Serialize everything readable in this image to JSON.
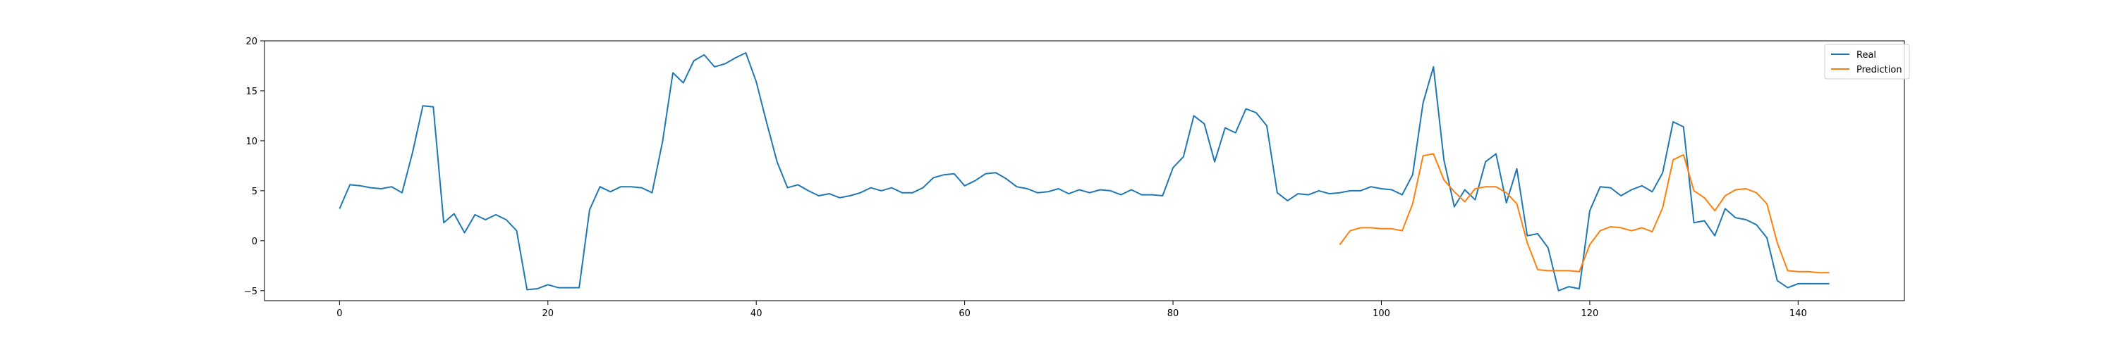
{
  "chart_data": {
    "type": "line",
    "title": "",
    "xlabel": "",
    "ylabel": "",
    "xlim": [
      -7.2,
      150.2
    ],
    "ylim": [
      -6,
      20
    ],
    "xticks": [
      0,
      20,
      40,
      60,
      80,
      100,
      120,
      140
    ],
    "yticks": [
      -5,
      0,
      5,
      10,
      15,
      20
    ],
    "grid": false,
    "legend_position": "top-right",
    "series": [
      {
        "name": "Real",
        "color": "#1f77b4",
        "x_start": 0,
        "values": [
          3.2,
          5.6,
          5.5,
          5.3,
          5.2,
          5.4,
          4.8,
          8.8,
          13.5,
          13.4,
          1.8,
          2.7,
          0.8,
          2.6,
          2.1,
          2.6,
          2.1,
          1.0,
          -4.9,
          -4.8,
          -4.4,
          -4.7,
          -4.7,
          -4.7,
          3.1,
          5.4,
          4.9,
          5.4,
          5.4,
          5.3,
          4.8,
          9.9,
          16.8,
          15.8,
          18.0,
          18.6,
          17.4,
          17.7,
          18.3,
          18.8,
          15.9,
          11.8,
          7.9,
          5.3,
          5.6,
          5.0,
          4.5,
          4.7,
          4.3,
          4.5,
          4.8,
          5.3,
          5.0,
          5.3,
          4.8,
          4.8,
          5.3,
          6.3,
          6.6,
          6.7,
          5.5,
          6.0,
          6.7,
          6.8,
          6.2,
          5.4,
          5.2,
          4.8,
          4.9,
          5.2,
          4.7,
          5.1,
          4.8,
          5.1,
          5.0,
          4.6,
          5.1,
          4.6,
          4.6,
          4.5,
          7.3,
          8.4,
          12.5,
          11.7,
          7.9,
          11.3,
          10.8,
          13.2,
          12.8,
          11.5,
          4.8,
          4.0,
          4.7,
          4.6,
          5.0,
          4.7,
          4.8,
          5.0,
          5.0,
          5.4,
          5.2,
          5.1,
          4.6,
          6.6,
          13.8,
          17.4,
          8.1,
          3.4,
          5.1,
          4.1,
          7.9,
          8.7,
          3.8,
          7.2,
          0.5,
          0.7,
          -0.7,
          -5.0,
          -4.6,
          -4.8,
          3.0,
          5.4,
          5.3,
          4.5,
          5.1,
          5.5,
          4.9,
          6.8,
          11.9,
          11.4,
          1.8,
          2.0,
          0.5,
          3.2,
          2.3,
          2.1,
          1.6,
          0.3,
          -4.0,
          -4.7,
          -4.3,
          -4.3,
          -4.3,
          -4.3
        ]
      },
      {
        "name": "Prediction",
        "color": "#ff7f0e",
        "x_start": 96,
        "values": [
          -0.4,
          1.0,
          1.3,
          1.3,
          1.2,
          1.2,
          1.0,
          3.7,
          8.5,
          8.7,
          6.1,
          4.9,
          3.9,
          5.2,
          5.4,
          5.4,
          4.8,
          3.7,
          -0.2,
          -2.9,
          -3.0,
          -3.0,
          -3.0,
          -3.1,
          -0.4,
          1.0,
          1.4,
          1.3,
          1.0,
          1.3,
          0.9,
          3.3,
          8.1,
          8.6,
          5.0,
          4.3,
          3.0,
          4.5,
          5.1,
          5.2,
          4.8,
          3.7,
          -0.2,
          -3.0,
          -3.1,
          -3.1,
          -3.2,
          -3.2
        ]
      }
    ]
  }
}
